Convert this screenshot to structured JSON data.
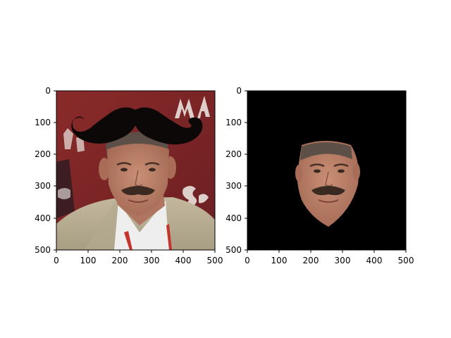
{
  "panels": [
    {
      "name": "original-with-mustache",
      "x_ticks": [
        "0",
        "100",
        "200",
        "300",
        "400",
        "500"
      ],
      "y_ticks": [
        "0",
        "100",
        "200",
        "300",
        "400",
        "500"
      ],
      "x_range": [
        0,
        500
      ],
      "y_range": [
        0,
        500
      ],
      "y_inverted": true,
      "content": "photo of a man in a tan blazer with a large black mustache overlay on his forehead; red background with partial white lettering",
      "colors": {
        "background": "#7a2424",
        "blazer": "#b8ad93",
        "mustache": "#0d0808",
        "skin": "#b88068"
      }
    },
    {
      "name": "face-segmentation",
      "x_ticks": [
        "0",
        "100",
        "200",
        "300",
        "400",
        "500"
      ],
      "y_ticks": [
        "0",
        "100",
        "200",
        "300",
        "400",
        "500"
      ],
      "x_range": [
        0,
        500
      ],
      "y_range": [
        0,
        500
      ],
      "y_inverted": true,
      "content": "black background with only the segmented face region visible",
      "colors": {
        "background": "#000000",
        "skin": "#b88068"
      }
    }
  ]
}
